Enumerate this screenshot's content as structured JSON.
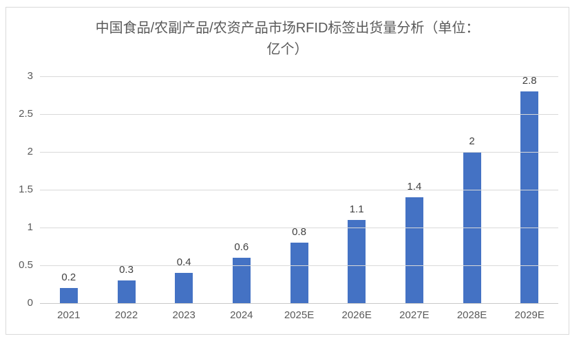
{
  "chart_data": {
    "type": "bar",
    "title": "中国食品/农副产品/农资产品市场RFID标签出货量分析（单位：亿个）",
    "title_lines": [
      "中国食品/农副产品/农资产品市场RFID标签出货量分析（单位：",
      "亿个）"
    ],
    "categories": [
      "2021",
      "2022",
      "2023",
      "2024",
      "2025E",
      "2026E",
      "2027E",
      "2028E",
      "2029E"
    ],
    "values": [
      0.2,
      0.3,
      0.4,
      0.6,
      0.8,
      1.1,
      1.4,
      2,
      2.8
    ],
    "value_labels": [
      "0.2",
      "0.3",
      "0.4",
      "0.6",
      "0.8",
      "1.1",
      "1.4",
      "2",
      "2.8"
    ],
    "xlabel": "",
    "ylabel": "",
    "ylim": [
      0,
      3
    ],
    "yticks": [
      0,
      0.5,
      1,
      1.5,
      2,
      2.5,
      3
    ],
    "ytick_labels": [
      "0",
      "0.5",
      "1",
      "1.5",
      "2",
      "2.5",
      "3"
    ],
    "grid": "horizontal",
    "legend": "none",
    "colors": {
      "bar": "#4472C4",
      "gridline": "#D9D9D9",
      "axis_line": "#C8C8C8",
      "frame_border": "#D9D9D9",
      "title_text": "#595959",
      "tick_text": "#595959",
      "data_label_text": "#404040",
      "background": "#FFFFFF"
    }
  }
}
